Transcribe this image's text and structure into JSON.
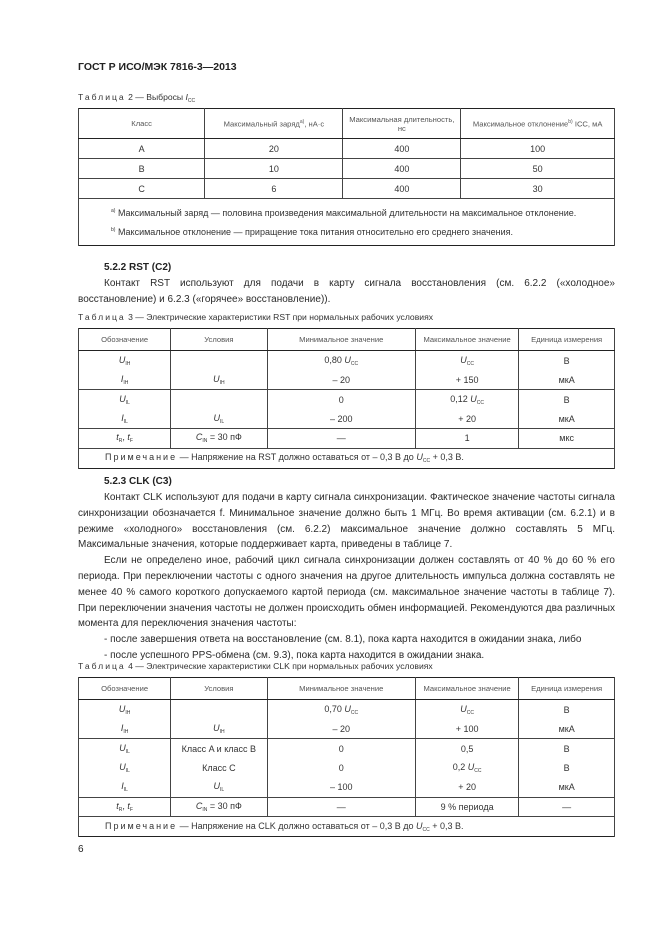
{
  "header": "ГОСТ Р ИСО/МЭК 7816-3—2013",
  "table2": {
    "caption_word": "Таблица",
    "caption_rest": " 2 — Выбросы ",
    "caption_var": "I",
    "caption_sub": "CC",
    "headers": [
      "Класс",
      "Максимальный заряд^a), нА·с",
      "Максимальная длительность, нс",
      "Максимальное отклонение^b) ICC, мА"
    ],
    "rows": [
      [
        "A",
        "20",
        "400",
        "100"
      ],
      [
        "B",
        "10",
        "400",
        "50"
      ],
      [
        "C",
        "6",
        "400",
        "30"
      ]
    ],
    "footnotes": [
      {
        "mark": "a)",
        "text": " Максимальный заряд — половина произведения максимальной длительности на максимальное отклонение."
      },
      {
        "mark": "b)",
        "text": " Максимальное отклонение — приращение тока питания относительно его среднего значения."
      }
    ]
  },
  "s522": {
    "heading": "5.2.2 RST (C2)",
    "text": "Контакт RST используют для подачи в карту сигнала восстановления (см. 6.2.2 («холодное» восстановление) и 6.2.3 («горячее» восстановление))."
  },
  "table3": {
    "caption_word": "Таблица",
    "caption_rest": " 3 — Электрические характеристики RST при нормальных рабочих условиях",
    "headers": [
      "Обозначение",
      "Условия",
      "Минимальное значение",
      "Максимальное значение",
      "Единица измерения"
    ],
    "groups": [
      [
        [
          {
            "v": "U",
            "s": "IH"
          },
          "",
          {
            "pre": "0,80 ",
            "v": "U",
            "s": "CC"
          },
          {
            "v": "U",
            "s": "CC"
          },
          "В"
        ],
        [
          {
            "v": "I",
            "s": "IH"
          },
          {
            "v": "U",
            "s": "IH"
          },
          "– 20",
          "+ 150",
          "мкА"
        ]
      ],
      [
        [
          {
            "v": "U",
            "s": "IL"
          },
          "",
          "0",
          {
            "pre": "0,12 ",
            "v": "U",
            "s": "CC"
          },
          "В"
        ],
        [
          {
            "v": "I",
            "s": "IL"
          },
          {
            "v": "U",
            "s": "IL"
          },
          "– 200",
          "+ 20",
          "мкА"
        ]
      ],
      [
        [
          {
            "v": "t",
            "s": "R",
            "post": ", ",
            "v2": "t",
            "s2": "F"
          },
          {
            "v": "C",
            "s": "IN",
            "post": " = 30 пФ"
          },
          "—",
          "1",
          "мкс"
        ]
      ]
    ],
    "note_word": "Примечание",
    "note_pre": " — Напряжение на RST должно оставаться от – 0,3 В до ",
    "note_var": "U",
    "note_sub": "CC",
    "note_post": " + 0,3 В."
  },
  "s523": {
    "heading": "5.2.3 CLK (C3)",
    "paragraphs": [
      "Контакт CLK используют для подачи в карту сигнала синхронизации. Фактическое значение частоты сигнала синхронизации обозначается f. Минимальное значение должно быть 1 МГц. Во время активации (см. 6.2.1) и в режиме «холодного» восстановления (см. 6.2.2) максимальное значение должно составлять 5 МГц. Максимальные значения, которые поддерживает карта, приведены в таблице 7.",
      "Если не определено иное, рабочий цикл сигнала синхронизации должен составлять от 40 % до 60 % его периода. При переключении частоты с одного значения на другое длительность импульса должна составлять не менее 40 % самого короткого допускаемого картой периода (см. максимальное значение частоты в таблице 7). При переключении значения частоты не должен происходить обмен информацией. Рекомендуются два различных момента для переключения значения частоты:",
      "- после завершения ответа на восстановление (см. 8.1), пока карта находится в ожидании знака, либо",
      "- после успешного PPS-обмена (см. 9.3), пока карта находится в ожидании знака."
    ]
  },
  "table4": {
    "caption_word": "Таблица",
    "caption_rest": " 4 — Электрические характеристики CLK при нормальных рабочих условиях",
    "headers": [
      "Обозначение",
      "Условия",
      "Минимальное значение",
      "Максимальное значение",
      "Единица измерения"
    ],
    "groups": [
      [
        [
          {
            "v": "U",
            "s": "IH"
          },
          "",
          {
            "pre": "0,70 ",
            "v": "U",
            "s": "CC"
          },
          {
            "v": "U",
            "s": "CC"
          },
          "В"
        ],
        [
          {
            "v": "I",
            "s": "IH"
          },
          {
            "v": "U",
            "s": "IH"
          },
          "– 20",
          "+ 100",
          "мкА"
        ]
      ],
      [
        [
          {
            "v": "U",
            "s": "IL"
          },
          "Класс A и класс B",
          "0",
          "0,5",
          "В"
        ],
        [
          {
            "v": "U",
            "s": "IL"
          },
          "Класс C",
          "0",
          {
            "pre": "0,2 ",
            "v": "U",
            "s": "CC"
          },
          "В"
        ],
        [
          {
            "v": "I",
            "s": "IL"
          },
          {
            "v": "U",
            "s": "IL"
          },
          "– 100",
          "+ 20",
          "мкА"
        ]
      ],
      [
        [
          {
            "v": "t",
            "s": "R",
            "post": ", ",
            "v2": "t",
            "s2": "F"
          },
          {
            "v": "C",
            "s": "IN",
            "post": " = 30 пФ"
          },
          "—",
          "9 % периода",
          "—"
        ]
      ]
    ],
    "note_word": "Примечание",
    "note_pre": " — Напряжение на CLK должно оставаться от – 0,3 В до ",
    "note_var": "U",
    "note_sub": "CC",
    "note_post": " + 0,3 В."
  },
  "page_number": "6"
}
